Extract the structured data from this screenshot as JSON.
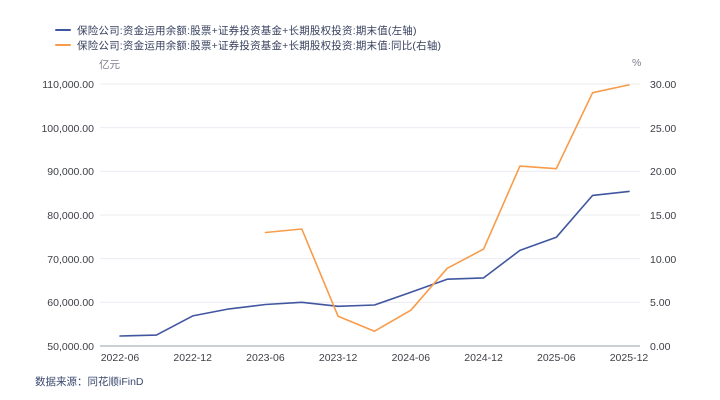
{
  "chart_data": {
    "type": "line",
    "unit_left": "亿元",
    "unit_right": "%",
    "categories": [
      "2022-06",
      "2022-09",
      "2022-12",
      "2023-03",
      "2023-06",
      "2023-09",
      "2023-12",
      "2024-03",
      "2024-06",
      "2024-09",
      "2024-12",
      "2025-03",
      "2025-06",
      "2025-09",
      "2025-12"
    ],
    "x_ticks": [
      {
        "i": 0,
        "label": "2022-06"
      },
      {
        "i": 2,
        "label": "2022-12"
      },
      {
        "i": 4,
        "label": "2023-06"
      },
      {
        "i": 6,
        "label": "2023-12"
      },
      {
        "i": 8,
        "label": "2024-06"
      },
      {
        "i": 10,
        "label": "2024-12"
      },
      {
        "i": 12,
        "label": "2025-06"
      },
      {
        "i": 14,
        "label": "2025-12"
      }
    ],
    "left_axis": {
      "min": 50000,
      "max": 110000,
      "ticks": [
        {
          "v": 50000,
          "label": "50,000.00"
        },
        {
          "v": 60000,
          "label": "60,000.00"
        },
        {
          "v": 70000,
          "label": "70,000.00"
        },
        {
          "v": 80000,
          "label": "80,000.00"
        },
        {
          "v": 90000,
          "label": "90,000.00"
        },
        {
          "v": 100000,
          "label": "100,000.00"
        },
        {
          "v": 110000,
          "label": "110,000.00"
        }
      ]
    },
    "right_axis": {
      "min": 0,
      "max": 30,
      "ticks": [
        {
          "v": 0,
          "label": "0.00"
        },
        {
          "v": 5,
          "label": "5.00"
        },
        {
          "v": 10,
          "label": "10.00"
        },
        {
          "v": 15,
          "label": "15.00"
        },
        {
          "v": 20,
          "label": "20.00"
        },
        {
          "v": 25,
          "label": "25.00"
        },
        {
          "v": 30,
          "label": "30.00"
        }
      ]
    },
    "series": [
      {
        "name": "保险公司:资金运用余额:股票+证券投资基金+长期股权投资:期末值(左轴)",
        "axis": "left",
        "color": "#4156a1",
        "start": 0,
        "values": [
          52300,
          52500,
          56900,
          58500,
          59500,
          60000,
          59100,
          59400,
          62300,
          65300,
          65600,
          71900,
          74900,
          84500,
          85400
        ]
      },
      {
        "name": "保险公司:资金运用余额:股票+证券投资基金+长期股权投资:期末值:同比(右轴)",
        "axis": "right",
        "color": "#f89c4a",
        "start": 4,
        "values": [
          13.0,
          13.4,
          3.4,
          1.7,
          4.1,
          8.9,
          11.1,
          20.6,
          20.3,
          29.0,
          29.9
        ]
      }
    ],
    "legend_position": "top-left",
    "grid": true
  },
  "footer": {
    "source": "数据来源：同花顺iFinD"
  }
}
